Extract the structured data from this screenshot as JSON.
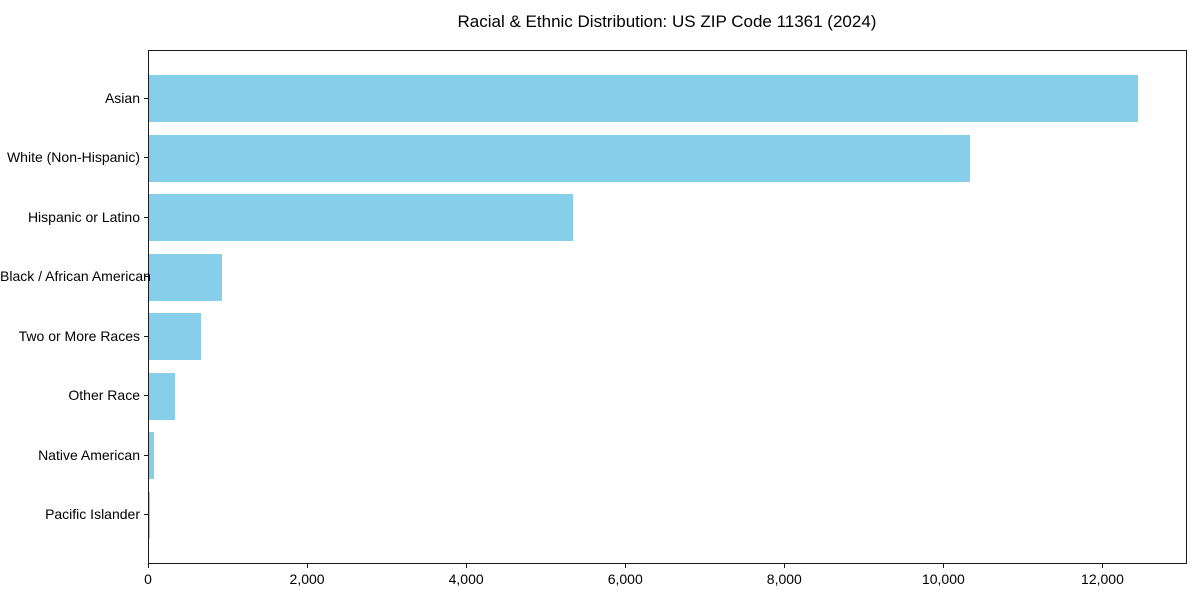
{
  "chart_data": {
    "type": "bar",
    "orientation": "horizontal",
    "title": "Racial & Ethnic Distribution: US ZIP Code 11361 (2024)",
    "categories": [
      "Asian",
      "White (Non-Hispanic)",
      "Hispanic or Latino",
      "Black / African American",
      "Two or More Races",
      "Other Race",
      "Native American",
      "Pacific Islander"
    ],
    "values": [
      12430,
      10320,
      5330,
      920,
      660,
      325,
      60,
      5
    ],
    "xlabel": "",
    "ylabel": "",
    "xlim": [
      0,
      13050
    ],
    "x_ticks": [
      0,
      2000,
      4000,
      6000,
      8000,
      10000,
      12000
    ],
    "x_tick_labels": [
      "0",
      "2,000",
      "4,000",
      "6,000",
      "8,000",
      "10,000",
      "12,000"
    ],
    "bar_color": "#87CEEB",
    "axis_color": "#1a1a1a",
    "text_color": "#000000",
    "background_color": "#ffffff",
    "grid": false,
    "legend": null,
    "sort_order": "descending"
  }
}
